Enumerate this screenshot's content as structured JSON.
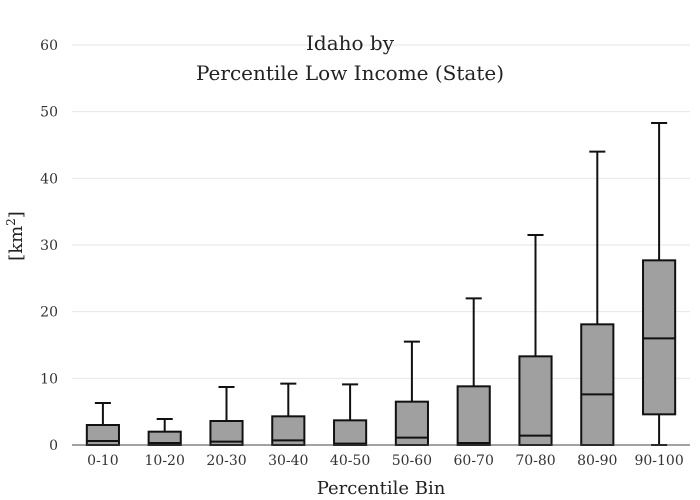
{
  "chart_data": {
    "type": "box",
    "title_lines": [
      "Idaho  by",
      "Percentile Low Income (State)"
    ],
    "xlabel": "Percentile Bin",
    "ylabel_base": "[km",
    "ylabel_sup": "2",
    "ylabel_end": "]",
    "ylim": [
      0,
      60
    ],
    "yticks": [
      0,
      10,
      20,
      30,
      40,
      50,
      60
    ],
    "grid": true,
    "box_color": "#a0a0a0",
    "categories": [
      "0-10",
      "10-20",
      "20-30",
      "30-40",
      "40-50",
      "50-60",
      "60-70",
      "70-80",
      "80-90",
      "90-100"
    ],
    "boxes": [
      {
        "min": 0,
        "q1": 0,
        "median": 0.6,
        "q3": 3.0,
        "max": 6.3
      },
      {
        "min": 0,
        "q1": 0,
        "median": 0.3,
        "q3": 2.0,
        "max": 3.9
      },
      {
        "min": 0,
        "q1": 0,
        "median": 0.5,
        "q3": 3.6,
        "max": 8.7
      },
      {
        "min": 0,
        "q1": 0,
        "median": 0.7,
        "q3": 4.3,
        "max": 9.2
      },
      {
        "min": 0,
        "q1": 0,
        "median": 0.2,
        "q3": 3.7,
        "max": 9.1
      },
      {
        "min": 0,
        "q1": 0,
        "median": 1.1,
        "q3": 6.5,
        "max": 15.5
      },
      {
        "min": 0,
        "q1": 0,
        "median": 0.3,
        "q3": 8.8,
        "max": 22.0
      },
      {
        "min": 0,
        "q1": 0,
        "median": 1.4,
        "q3": 13.3,
        "max": 31.5
      },
      {
        "min": 0,
        "q1": 0,
        "median": 7.6,
        "q3": 18.1,
        "max": 44.0
      },
      {
        "min": 0,
        "q1": 4.6,
        "median": 16.0,
        "q3": 27.7,
        "max": 48.3
      }
    ]
  }
}
